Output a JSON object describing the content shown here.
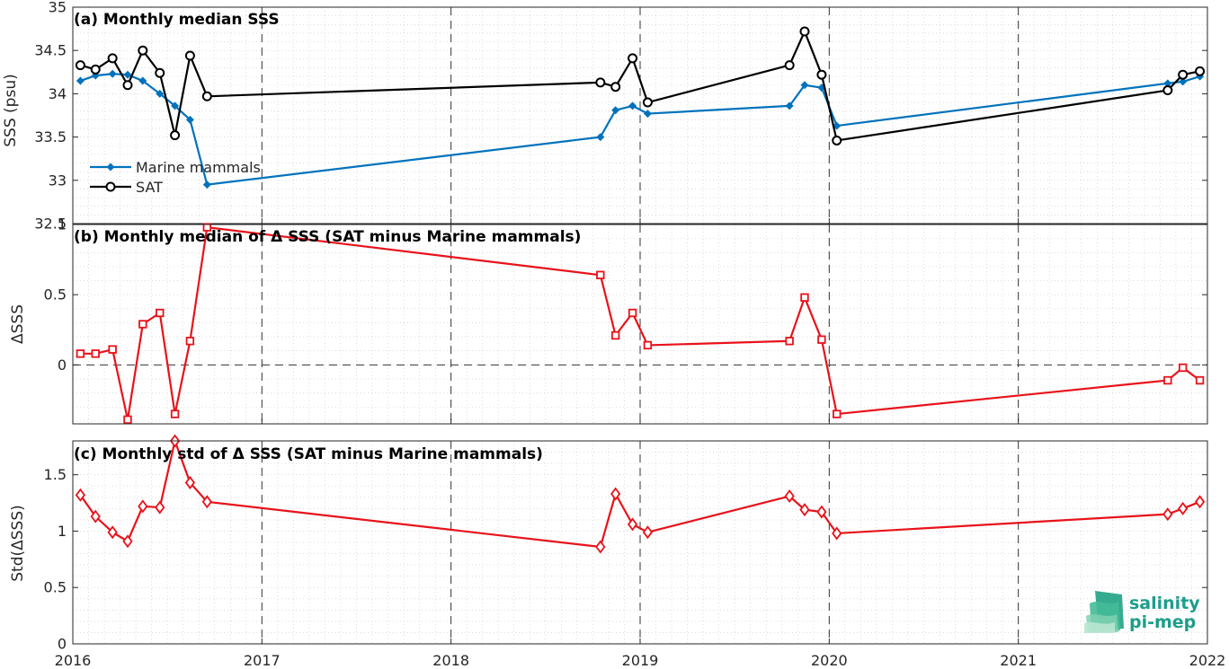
{
  "colors": {
    "marine": "#0072bd",
    "sat": "#000000",
    "delta": "#e8121a",
    "logo": "#1d9e8a"
  },
  "logo": {
    "line1": "salinity",
    "line2": "pi-mep",
    "icon": "salinity-wave-icon"
  },
  "x_axis": {
    "range": [
      2016,
      2022
    ],
    "tick_labels": [
      "2016",
      "2017",
      "2018",
      "2019",
      "2020",
      "2021",
      "2022"
    ],
    "tick_values": [
      2016,
      2017,
      2018,
      2019,
      2020,
      2021,
      2022
    ]
  },
  "chart_data": [
    {
      "type": "line",
      "title": "(a) Monthly median SSS",
      "ylabel": "SSS (psu)",
      "ylim": [
        32.5,
        35
      ],
      "yticks": [
        32.5,
        33,
        33.5,
        34,
        34.5,
        35
      ],
      "ytick_labels": [
        "32.5",
        "33",
        "33.5",
        "34",
        "34.5",
        "35"
      ],
      "legend": "bottom-left",
      "grid": "dotted",
      "series": [
        {
          "name": "Marine mammals",
          "color": "#0072bd",
          "marker": "filled-diamond",
          "x": [
            2016.04,
            2016.12,
            2016.21,
            2016.29,
            2016.37,
            2016.46,
            2016.54,
            2016.62,
            2016.71,
            2018.79,
            2018.87,
            2018.96,
            2019.04,
            2019.79,
            2019.87,
            2019.96,
            2020.04,
            2021.79,
            2021.87,
            2021.96
          ],
          "y": [
            34.15,
            34.21,
            34.23,
            34.22,
            34.15,
            34.0,
            33.86,
            33.7,
            32.95,
            33.5,
            33.81,
            33.86,
            33.77,
            33.86,
            34.1,
            34.07,
            33.63,
            34.12,
            34.14,
            34.2
          ]
        },
        {
          "name": "SAT",
          "color": "#000000",
          "marker": "open-circle",
          "x": [
            2016.04,
            2016.12,
            2016.21,
            2016.29,
            2016.37,
            2016.46,
            2016.54,
            2016.62,
            2016.71,
            2018.79,
            2018.87,
            2018.96,
            2019.04,
            2019.79,
            2019.87,
            2019.96,
            2020.04,
            2021.79,
            2021.87,
            2021.96
          ],
          "y": [
            34.33,
            34.28,
            34.41,
            34.1,
            34.5,
            34.24,
            33.52,
            34.44,
            33.97,
            34.13,
            34.08,
            34.41,
            33.9,
            34.33,
            34.72,
            34.22,
            33.46,
            34.04,
            34.22,
            34.26
          ]
        }
      ]
    },
    {
      "type": "line",
      "title": "(b) Monthly median of Δ SSS (SAT minus Marine mammals)",
      "ylabel": "ΔSSS",
      "ylim": [
        -0.42,
        1
      ],
      "yticks": [
        0,
        0.5,
        1
      ],
      "ytick_labels": [
        "0",
        "0.5",
        "1"
      ],
      "zero_line": true,
      "grid": "dotted",
      "series": [
        {
          "color": "#e8121a",
          "marker": "open-square",
          "x": [
            2016.04,
            2016.12,
            2016.21,
            2016.29,
            2016.37,
            2016.46,
            2016.54,
            2016.62,
            2016.71,
            2018.79,
            2018.87,
            2018.96,
            2019.04,
            2019.79,
            2019.87,
            2019.96,
            2020.04,
            2021.79,
            2021.87,
            2021.96
          ],
          "y": [
            0.08,
            0.08,
            0.11,
            -0.39,
            0.29,
            0.37,
            -0.35,
            0.17,
            0.98,
            0.64,
            0.21,
            0.37,
            0.14,
            0.17,
            0.48,
            0.18,
            -0.35,
            -0.11,
            -0.02,
            -0.11
          ]
        }
      ]
    },
    {
      "type": "line",
      "title": "(c) Monthly std of Δ SSS (SAT minus Marine mammals)",
      "ylabel": "Std(ΔSSS)",
      "ylim": [
        0,
        1.8
      ],
      "yticks": [
        0,
        0.5,
        1,
        1.5
      ],
      "ytick_labels": [
        "0",
        "0.5",
        "1",
        "1.5"
      ],
      "grid": "dotted",
      "series": [
        {
          "color": "#e8121a",
          "marker": "open-diamond",
          "x": [
            2016.04,
            2016.12,
            2016.21,
            2016.29,
            2016.37,
            2016.46,
            2016.54,
            2016.62,
            2016.71,
            2018.79,
            2018.87,
            2018.96,
            2019.04,
            2019.79,
            2019.87,
            2019.96,
            2020.04,
            2021.79,
            2021.87,
            2021.96
          ],
          "y": [
            1.32,
            1.13,
            0.99,
            0.91,
            1.22,
            1.21,
            1.8,
            1.43,
            1.26,
            0.86,
            1.33,
            1.06,
            0.99,
            1.31,
            1.19,
            1.17,
            0.98,
            1.15,
            1.2,
            1.26
          ]
        }
      ]
    }
  ]
}
